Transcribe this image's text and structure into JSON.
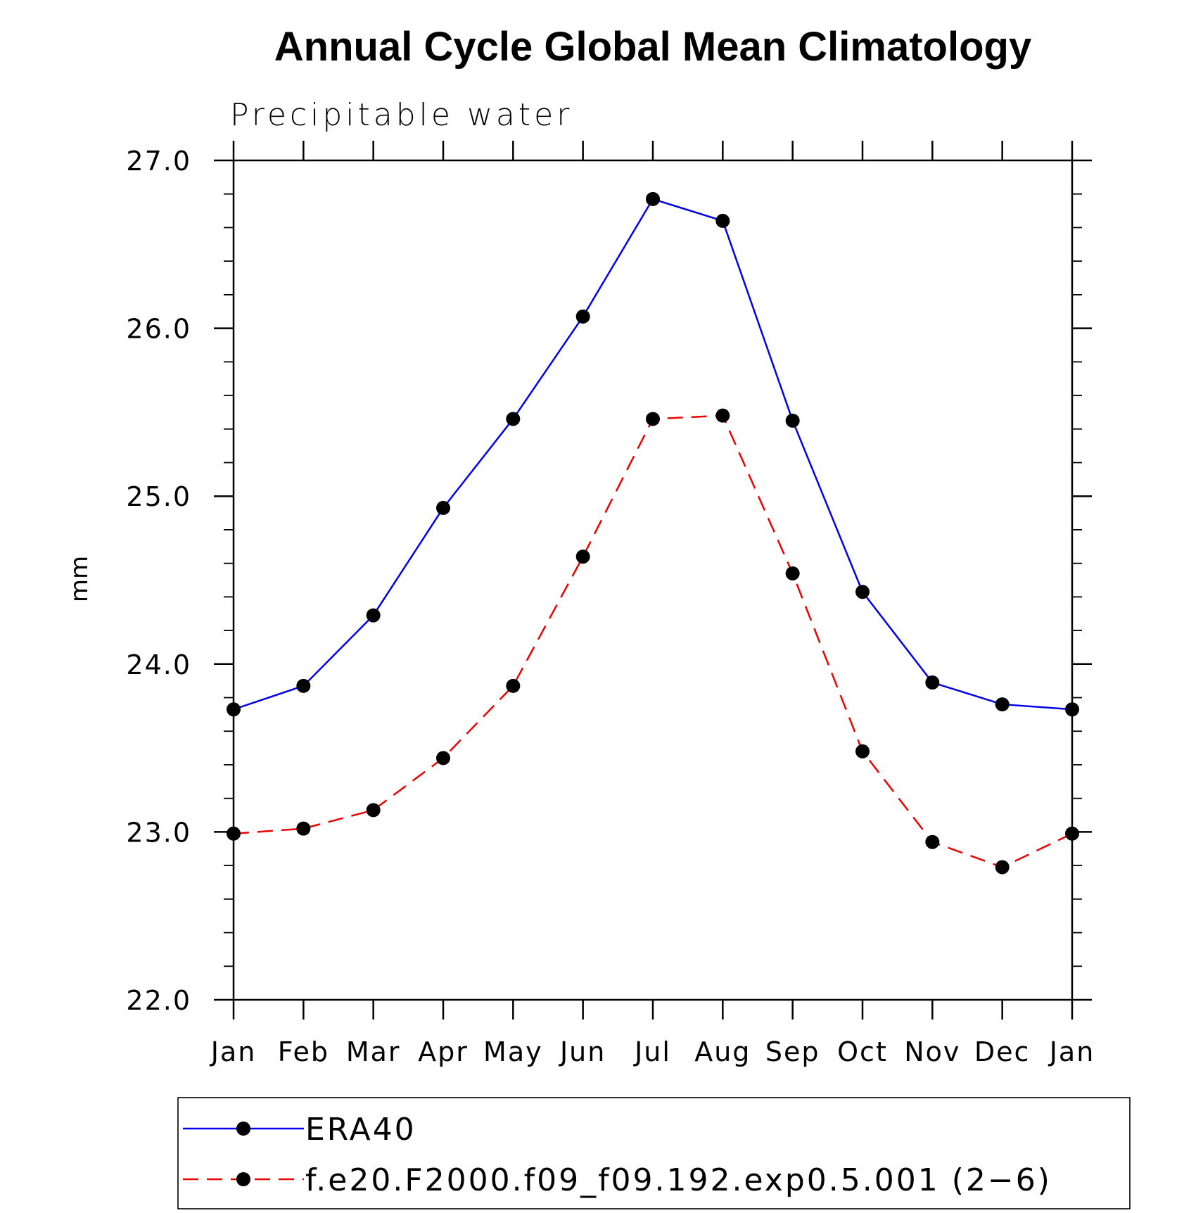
{
  "chart_data": {
    "type": "line",
    "title": "Annual Cycle Global Mean Climatology",
    "subtitle": "Precipitable water",
    "xlabel": "",
    "ylabel": "mm",
    "categories": [
      "Jan",
      "Feb",
      "Mar",
      "Apr",
      "May",
      "Jun",
      "Jul",
      "Aug",
      "Sep",
      "Oct",
      "Nov",
      "Dec",
      "Jan"
    ],
    "ylim": [
      22.0,
      27.0
    ],
    "yticks": [
      "22.0",
      "23.0",
      "24.0",
      "25.0",
      "26.0",
      "27.0"
    ],
    "y_minor_step": 0.2,
    "grid": false,
    "legend_position": "bottom",
    "series": [
      {
        "name": "ERA40",
        "color": "#0000ee",
        "line_style": "solid",
        "marker": "filled-circle",
        "values": [
          23.73,
          23.87,
          24.29,
          24.93,
          25.46,
          26.07,
          26.77,
          26.64,
          25.45,
          24.43,
          23.89,
          23.76,
          23.73
        ]
      },
      {
        "name": "f.e20.F2000.f09_f09.192.exp0.5.001 (2−6)",
        "color": "#ee0000",
        "line_style": "dashed",
        "marker": "filled-circle",
        "values": [
          22.99,
          23.02,
          23.13,
          23.44,
          23.87,
          24.64,
          25.46,
          25.48,
          24.54,
          23.48,
          22.94,
          22.79,
          22.99
        ]
      }
    ]
  }
}
